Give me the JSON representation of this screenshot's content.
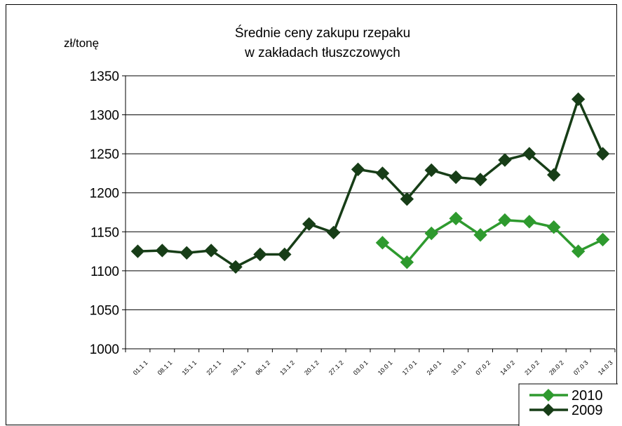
{
  "chart_data": {
    "type": "line",
    "title_lines": [
      "Średnie ceny zakupu rzepaku",
      "w  zakładach tłuszczowych"
    ],
    "ylabel": "zł/tonę",
    "xlabel": "",
    "ylim": [
      1000,
      1350
    ],
    "yticks": [
      1000,
      1050,
      1100,
      1150,
      1200,
      1250,
      1300,
      1350
    ],
    "categories": [
      "01.1 1",
      "08.1 1",
      "15.1 1",
      "22.1 1",
      "29.1 1",
      "06.1 2",
      "13.1 2",
      "20.1 2",
      "27.1 2",
      "03.0 1",
      "10.0 1",
      "17.0 1",
      "24.0 1",
      "31.0 1",
      "07.0 2",
      "14.0 2",
      "21.0 2",
      "28.0 2",
      "07.0 3",
      "14.0 3"
    ],
    "grid": true,
    "legend_position": "bottom-right",
    "series": [
      {
        "name": "2010",
        "color": "#2e9a2e",
        "values": [
          null,
          null,
          null,
          null,
          null,
          null,
          null,
          null,
          null,
          null,
          1136,
          1111,
          1148,
          1167,
          1146,
          1165,
          1163,
          1156,
          1125,
          1140
        ]
      },
      {
        "name": "2009",
        "color": "#173d17",
        "values": [
          1125,
          1126,
          1123,
          1126,
          1105,
          1121,
          1121,
          1160,
          1149,
          1230,
          1225,
          1192,
          1229,
          1220,
          1217,
          1242,
          1250,
          1223,
          1320,
          1250
        ]
      }
    ]
  }
}
